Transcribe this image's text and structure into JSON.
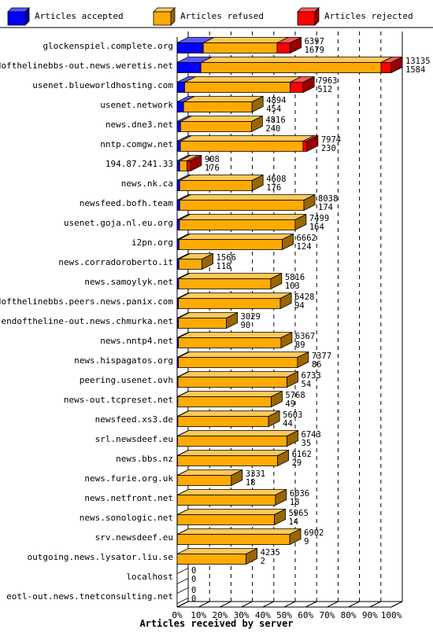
{
  "chart_data": {
    "type": "bar",
    "stacked": true,
    "orientation": "horizontal",
    "xlabel": "Articles received by server",
    "xlim": [
      0,
      100
    ],
    "x_ticks": [
      "0%",
      "10%",
      "20%",
      "30%",
      "40%",
      "50%",
      "60%",
      "70%",
      "80%",
      "90%",
      "100%"
    ],
    "grid": true,
    "legend_position": "top",
    "series": [
      {
        "name": "Articles accepted",
        "color": "#0000ff"
      },
      {
        "name": "Articles refused",
        "color": "#ffaa00"
      },
      {
        "name": "Articles rejected",
        "color": "#ff0000"
      }
    ],
    "rows": [
      {
        "server": "glockenspiel.complete.org",
        "total": "6397",
        "accepted": "1679",
        "accepted_pct": 12.2,
        "refused_pct": 34.5,
        "rejected_pct": 6.1
      },
      {
        "server": "endofthelinebbs-out.news.weretis.net",
        "total": "13135",
        "accepted": "1584",
        "accepted_pct": 11.1,
        "refused_pct": 84.1,
        "rejected_pct": 4.8
      },
      {
        "server": "usenet.blueworldhosting.com",
        "total": "7963",
        "accepted": "512",
        "accepted_pct": 3.5,
        "refused_pct": 49.3,
        "rejected_pct": 6.1
      },
      {
        "server": "usenet.network",
        "total": "4894",
        "accepted": "454",
        "accepted_pct": 3.0,
        "refused_pct": 32.0,
        "rejected_pct": 0
      },
      {
        "server": "news.dne3.net",
        "total": "4816",
        "accepted": "240",
        "accepted_pct": 1.6,
        "refused_pct": 33.1,
        "rejected_pct": 0
      },
      {
        "server": "nntp.comgw.net",
        "total": "7974",
        "accepted": "230",
        "accepted_pct": 1.5,
        "refused_pct": 57.3,
        "rejected_pct": 1.8
      },
      {
        "server": "194.87.241.33",
        "total": "908",
        "accepted": "176",
        "accepted_pct": 1.2,
        "refused_pct": 3.4,
        "rejected_pct": 1.6
      },
      {
        "server": "news.nk.ca",
        "total": "4608",
        "accepted": "176",
        "accepted_pct": 1.2,
        "refused_pct": 33.8,
        "rejected_pct": 0
      },
      {
        "server": "newsfeed.bofh.team",
        "total": "8038",
        "accepted": "174",
        "accepted_pct": 1.2,
        "refused_pct": 58.0,
        "rejected_pct": 0
      },
      {
        "server": "usenet.goja.nl.eu.org",
        "total": "7499",
        "accepted": "164",
        "accepted_pct": 1.1,
        "refused_pct": 54.0,
        "rejected_pct": 0
      },
      {
        "server": "i2pn.org",
        "total": "6662",
        "accepted": "124",
        "accepted_pct": 0.9,
        "refused_pct": 48.2,
        "rejected_pct": 0
      },
      {
        "server": "news.corradoroberto.it",
        "total": "1566",
        "accepted": "118",
        "accepted_pct": 0.8,
        "refused_pct": 10.8,
        "rejected_pct": 0
      },
      {
        "server": "news.samoylyk.net",
        "total": "5816",
        "accepted": "103",
        "accepted_pct": 0.7,
        "refused_pct": 43.0,
        "rejected_pct": 0
      },
      {
        "server": "endofthelinebbs.peers.news.panix.com",
        "total": "6428",
        "accepted": "94",
        "accepted_pct": 0.6,
        "refused_pct": 47.6,
        "rejected_pct": 0
      },
      {
        "server": "endoftheline-out.news.chmurka.net",
        "total": "3029",
        "accepted": "90",
        "accepted_pct": 0.6,
        "refused_pct": 22.4,
        "rejected_pct": 0
      },
      {
        "server": "news.nntp4.net",
        "total": "6367",
        "accepted": "89",
        "accepted_pct": 0.6,
        "refused_pct": 47.9,
        "rejected_pct": 0
      },
      {
        "server": "news.hispagatos.org",
        "total": "7377",
        "accepted": "86",
        "accepted_pct": 0.6,
        "refused_pct": 55.6,
        "rejected_pct": 0
      },
      {
        "server": "peering.usenet.ovh",
        "total": "6733",
        "accepted": "54",
        "accepted_pct": 0.4,
        "refused_pct": 50.9,
        "rejected_pct": 0
      },
      {
        "server": "news-out.tcpreset.net",
        "total": "5768",
        "accepted": "49",
        "accepted_pct": 0.3,
        "refused_pct": 43.6,
        "rejected_pct": 0
      },
      {
        "server": "newsfeed.xs3.de",
        "total": "5603",
        "accepted": "44",
        "accepted_pct": 0.3,
        "refused_pct": 42.4,
        "rejected_pct": 0
      },
      {
        "server": "srl.newsdeef.eu",
        "total": "6743",
        "accepted": "35",
        "accepted_pct": 0.2,
        "refused_pct": 51.1,
        "rejected_pct": 0
      },
      {
        "server": "news.bbs.nz",
        "total": "6162",
        "accepted": "29",
        "accepted_pct": 0.2,
        "refused_pct": 46.7,
        "rejected_pct": 0
      },
      {
        "server": "news.furie.org.uk",
        "total": "3331",
        "accepted": "18",
        "accepted_pct": 0.1,
        "refused_pct": 25.2,
        "rejected_pct": 0
      },
      {
        "server": "news.netfront.net",
        "total": "6036",
        "accepted": "18",
        "accepted_pct": 0.1,
        "refused_pct": 45.8,
        "rejected_pct": 0
      },
      {
        "server": "news.sonologic.net",
        "total": "5965",
        "accepted": "14",
        "accepted_pct": 0.1,
        "refused_pct": 45.3,
        "rejected_pct": 0
      },
      {
        "server": "srv.newsdeef.eu",
        "total": "6902",
        "accepted": "9",
        "accepted_pct": 0.1,
        "refused_pct": 52.5,
        "rejected_pct": 0
      },
      {
        "server": "outgoing.news.lysator.liu.se",
        "total": "4235",
        "accepted": "2",
        "accepted_pct": 0.0,
        "refused_pct": 32.2,
        "rejected_pct": 0
      },
      {
        "server": "localhost",
        "total": "0",
        "accepted": "0",
        "accepted_pct": 0,
        "refused_pct": 0,
        "rejected_pct": 0
      },
      {
        "server": "eotl-out.news.tnetconsulting.net",
        "total": "0",
        "accepted": "0",
        "accepted_pct": 0,
        "refused_pct": 0,
        "rejected_pct": 0
      }
    ]
  }
}
